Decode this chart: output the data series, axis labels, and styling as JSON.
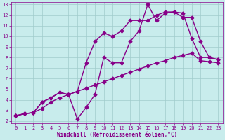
{
  "xlabel": "Windchill (Refroidissement éolien,°C)",
  "bg_color": "#c8ecec",
  "grid_color": "#a0cccc",
  "line_color": "#880088",
  "xlim": [
    -0.5,
    23.5
  ],
  "ylim": [
    1.8,
    13.2
  ],
  "xticks": [
    0,
    1,
    2,
    3,
    4,
    5,
    6,
    7,
    8,
    9,
    10,
    11,
    12,
    13,
    14,
    15,
    16,
    17,
    18,
    19,
    20,
    21,
    22,
    23
  ],
  "yticks": [
    2,
    3,
    4,
    5,
    6,
    7,
    8,
    9,
    10,
    11,
    12,
    13
  ],
  "line1_x": [
    0,
    1,
    2,
    3,
    4,
    5,
    6,
    7,
    8,
    9,
    10,
    11,
    12,
    13,
    14,
    15,
    16,
    17,
    18,
    19,
    20,
    21,
    22,
    23
  ],
  "line1_y": [
    2.5,
    2.7,
    2.8,
    3.2,
    3.8,
    4.2,
    4.5,
    4.8,
    5.1,
    5.4,
    5.7,
    6.0,
    6.3,
    6.6,
    6.9,
    7.2,
    7.5,
    7.7,
    8.0,
    8.2,
    8.4,
    7.7,
    7.6,
    7.5
  ],
  "line2_x": [
    0,
    1,
    2,
    3,
    4,
    5,
    6,
    7,
    8,
    9,
    10,
    11,
    12,
    13,
    14,
    15,
    16,
    17,
    18,
    19,
    20,
    21,
    22,
    23
  ],
  "line2_y": [
    2.5,
    2.7,
    2.8,
    3.8,
    4.2,
    4.7,
    4.5,
    2.2,
    3.3,
    4.5,
    8.0,
    7.5,
    7.5,
    9.5,
    10.5,
    13.0,
    11.5,
    12.2,
    12.3,
    12.2,
    9.8,
    8.0,
    8.0,
    7.8
  ],
  "line3_x": [
    0,
    1,
    2,
    3,
    4,
    5,
    6,
    7,
    8,
    9,
    10,
    11,
    12,
    13,
    14,
    15,
    16,
    17,
    18,
    19,
    20,
    21,
    22,
    23
  ],
  "line3_y": [
    2.5,
    2.7,
    2.8,
    3.8,
    4.2,
    4.7,
    4.5,
    4.8,
    7.5,
    9.5,
    10.3,
    10.0,
    10.5,
    11.5,
    11.5,
    11.5,
    12.0,
    12.3,
    12.3,
    11.8,
    11.8,
    9.5,
    8.0,
    7.8
  ],
  "marker_size": 2.5,
  "line_width": 1.0,
  "tick_fontsize": 5.0,
  "xlabel_fontsize": 5.5
}
